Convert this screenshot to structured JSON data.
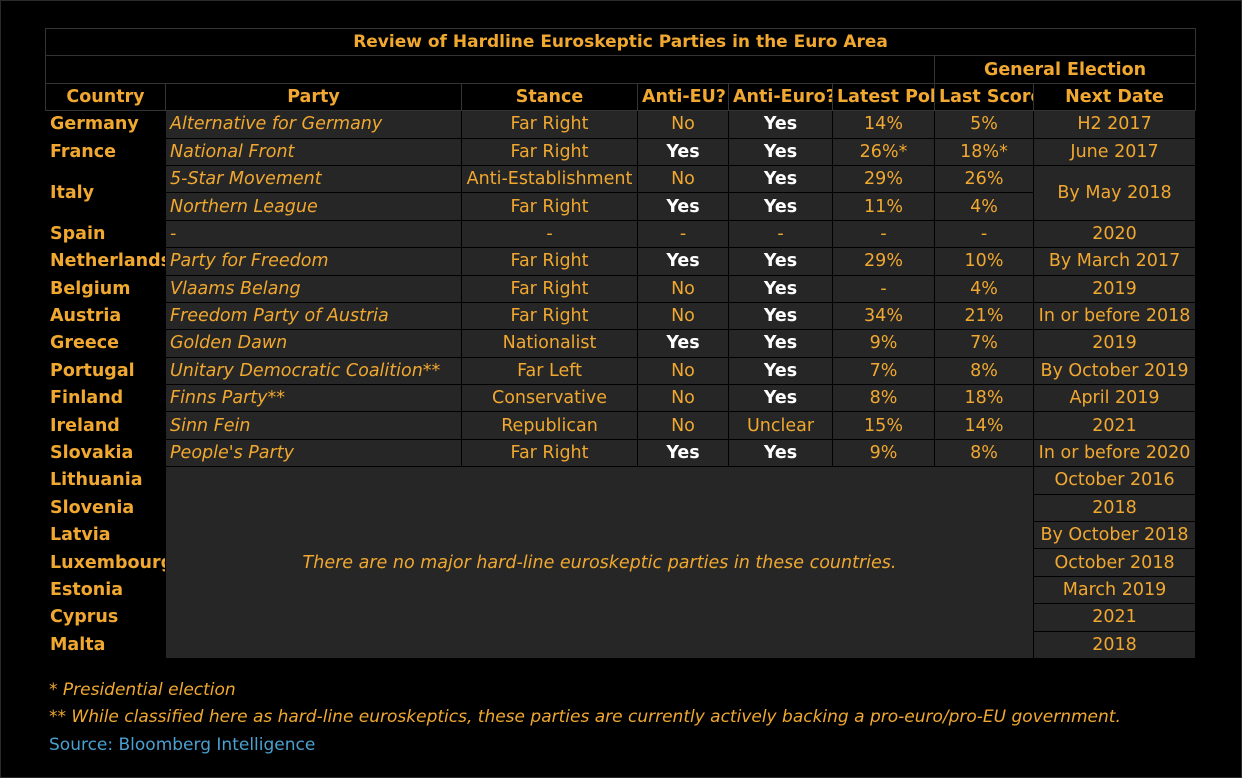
{
  "title": "Review of Hardline Euroskeptic Parties in the Euro Area",
  "group_header": "General Election",
  "headers": {
    "country": "Country",
    "party": "Party",
    "stance": "Stance",
    "anti_eu": "Anti-EU?",
    "anti_euro": "Anti-Euro?",
    "latest_poll": "Latest Poll",
    "last_score": "Last Score",
    "next_date": "Next Date"
  },
  "rows": [
    {
      "country": "Germany",
      "party": "Alternative for Germany",
      "stance": "Far Right",
      "anti_eu": "No",
      "anti_euro": "Yes",
      "poll": "14%",
      "score": "5%",
      "date": "H2 2017"
    },
    {
      "country": "France",
      "party": "National Front",
      "stance": "Far Right",
      "anti_eu": "Yes",
      "anti_euro": "Yes",
      "poll": "26%*",
      "score": "18%*",
      "date": "June 2017"
    },
    {
      "country": "Italy",
      "party": "5-Star Movement",
      "stance": "Anti-Establishment",
      "anti_eu": "No",
      "anti_euro": "Yes",
      "poll": "29%",
      "score": "26%",
      "date": "By May 2018"
    },
    {
      "country": "",
      "party": "Northern League",
      "stance": "Far Right",
      "anti_eu": "Yes",
      "anti_euro": "Yes",
      "poll": "11%",
      "score": "4%",
      "date": ""
    },
    {
      "country": "Spain",
      "party": "-",
      "stance": "-",
      "anti_eu": "-",
      "anti_euro": "-",
      "poll": "-",
      "score": "-",
      "date": "2020"
    },
    {
      "country": "Netherlands",
      "party": "Party for Freedom",
      "stance": "Far Right",
      "anti_eu": "Yes",
      "anti_euro": "Yes",
      "poll": "29%",
      "score": "10%",
      "date": "By March 2017"
    },
    {
      "country": "Belgium",
      "party": "Vlaams Belang",
      "stance": "Far Right",
      "anti_eu": "No",
      "anti_euro": "Yes",
      "poll": "-",
      "score": "4%",
      "date": "2019"
    },
    {
      "country": "Austria",
      "party": "Freedom Party of Austria",
      "stance": "Far Right",
      "anti_eu": "No",
      "anti_euro": "Yes",
      "poll": "34%",
      "score": "21%",
      "date": "In or before 2018"
    },
    {
      "country": "Greece",
      "party": "Golden Dawn",
      "stance": "Nationalist",
      "anti_eu": "Yes",
      "anti_euro": "Yes",
      "poll": "9%",
      "score": "7%",
      "date": "2019"
    },
    {
      "country": "Portugal",
      "party": "Unitary Democratic Coalition**",
      "stance": "Far Left",
      "anti_eu": "No",
      "anti_euro": "Yes",
      "poll": "7%",
      "score": "8%",
      "date": "By October 2019"
    },
    {
      "country": "Finland",
      "party": "Finns Party**",
      "stance": "Conservative",
      "anti_eu": "No",
      "anti_euro": "Yes",
      "poll": "8%",
      "score": "18%",
      "date": "April 2019"
    },
    {
      "country": "Ireland",
      "party": "Sinn Fein",
      "stance": "Republican",
      "anti_eu": "No",
      "anti_euro": "Unclear",
      "poll": "15%",
      "score": "14%",
      "date": "2021"
    },
    {
      "country": "Slovakia",
      "party": "People's Party",
      "stance": "Far Right",
      "anti_eu": "Yes",
      "anti_euro": "Yes",
      "poll": "9%",
      "score": "8%",
      "date": "In or before 2020"
    }
  ],
  "no_party_rows": [
    {
      "country": "Lithuania",
      "date": "October 2016"
    },
    {
      "country": "Slovenia",
      "date": "2018"
    },
    {
      "country": "Latvia",
      "date": "By October 2018"
    },
    {
      "country": "Luxembourg",
      "date": "October 2018"
    },
    {
      "country": "Estonia",
      "date": "March 2019"
    },
    {
      "country": "Cyprus",
      "date": "2021"
    },
    {
      "country": "Malta",
      "date": "2018"
    }
  ],
  "no_party_note": "There are no major hard-line euroskeptic parties in these countries.",
  "footnote1": "* Presidential election",
  "footnote2": "** While classified here as hard-line euroskeptics, these parties are currently actively backing a pro-euro/pro-EU government.",
  "source": "Source: Bloomberg Intelligence"
}
